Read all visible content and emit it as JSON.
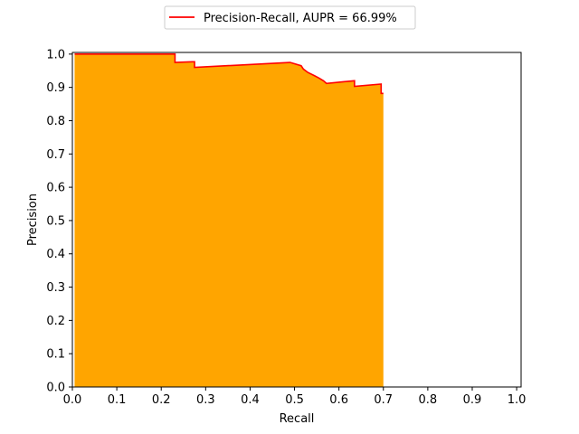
{
  "chart_data": {
    "type": "area",
    "xlabel": "Recall",
    "ylabel": "Precision",
    "xlim": [
      0.0,
      1.01
    ],
    "ylim": [
      0.0,
      1.005
    ],
    "xticks": [
      "0.0",
      "0.1",
      "0.2",
      "0.3",
      "0.4",
      "0.5",
      "0.6",
      "0.7",
      "0.8",
      "0.9",
      "1.0"
    ],
    "yticks": [
      "0.0",
      "0.1",
      "0.2",
      "0.3",
      "0.4",
      "0.5",
      "0.6",
      "0.7",
      "0.8",
      "0.9",
      "1.0"
    ],
    "grid": false,
    "legend_position": "top-center",
    "series": [
      {
        "name": "Precision-Recall, AUPR = 66.99%",
        "line_color": "#ff0000",
        "fill_color": "#ffa500",
        "x": [
          0.005,
          0.231,
          0.231,
          0.27,
          0.27,
          0.275,
          0.275,
          0.49,
          0.49,
          0.515,
          0.515,
          0.52,
          0.52,
          0.53,
          0.53,
          0.545,
          0.545,
          0.555,
          0.555,
          0.565,
          0.565,
          0.572,
          0.572,
          0.635,
          0.635,
          0.695,
          0.695,
          0.7
        ],
        "y": [
          1.0,
          1.0,
          0.975,
          0.977,
          0.977,
          0.977,
          0.96,
          0.975,
          0.975,
          0.965,
          0.965,
          0.955,
          0.955,
          0.945,
          0.945,
          0.935,
          0.935,
          0.928,
          0.928,
          0.92,
          0.92,
          0.912,
          0.912,
          0.92,
          0.903,
          0.91,
          0.882,
          0.882
        ]
      }
    ]
  }
}
